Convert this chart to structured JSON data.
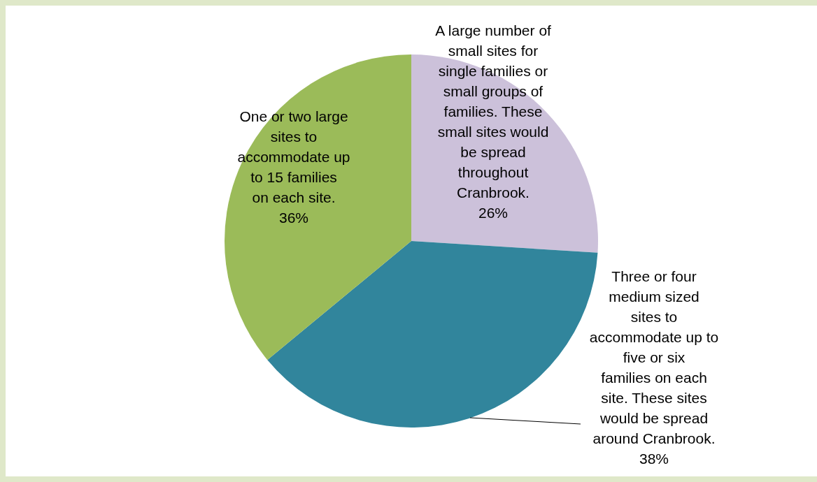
{
  "chart_data": {
    "type": "pie",
    "categories": [
      "A large number of small sites for single families or small groups of families. These small sites would be spread throughout Cranbrook.",
      "Three or four medium sized sites to accommodate up to five or six families on each site. These sites would be spread around Cranbrook.",
      "One or two large sites to accommodate up to 15 families on each site."
    ],
    "values": [
      26,
      38,
      36
    ],
    "colors": [
      "#ccc1da",
      "#31859c",
      "#9bbb59"
    ],
    "value_labels": [
      "26%",
      "38%",
      "36%"
    ]
  }
}
